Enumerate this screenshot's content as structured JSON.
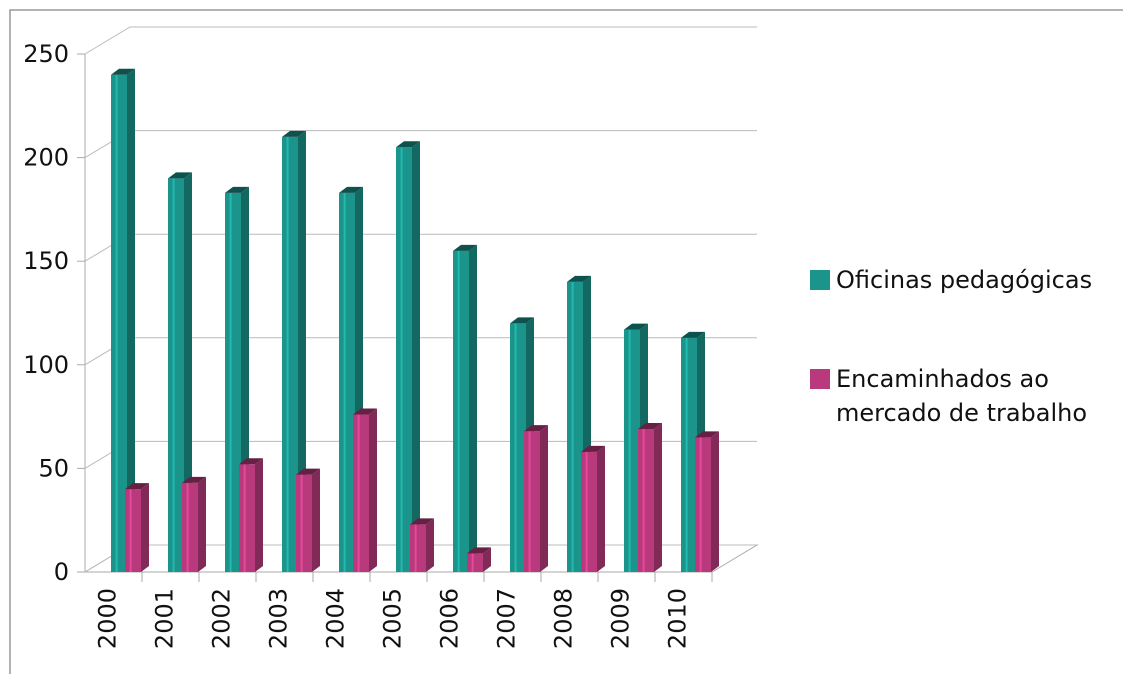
{
  "chart_data": {
    "type": "bar3d",
    "categories": [
      "2000",
      "2001",
      "2002",
      "2003",
      "2004",
      "2005",
      "2006",
      "2007",
      "2008",
      "2009",
      "2010"
    ],
    "series": [
      {
        "name": "Oficinas pedagógicas",
        "color": "#1b948c",
        "values": [
          240,
          190,
          183,
          210,
          183,
          205,
          155,
          120,
          140,
          117,
          113
        ]
      },
      {
        "name": "Encaminhados ao mercado de trabalho",
        "color": "#b83a7c",
        "values": [
          40,
          43,
          52,
          47,
          76,
          23,
          9,
          68,
          58,
          69,
          65
        ]
      }
    ],
    "ylim": [
      0,
      250
    ],
    "yticks": [
      0,
      50,
      100,
      150,
      200,
      250
    ],
    "grid": true
  }
}
